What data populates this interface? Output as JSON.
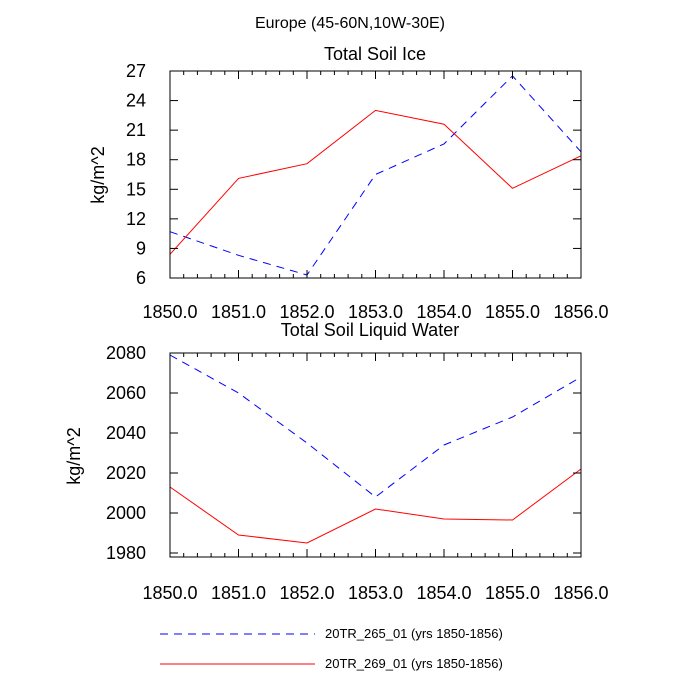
{
  "figure": {
    "suptitle": "Europe (45-60N,10W-30E)"
  },
  "chart_data": [
    {
      "type": "line",
      "title": "Total Soil Ice",
      "xlabel": "",
      "ylabel": "kg/m^2",
      "x": [
        1850,
        1851,
        1852,
        1853,
        1854,
        1855,
        1856
      ],
      "xticks": [
        "1850.0",
        "1851.0",
        "1852.0",
        "1853.0",
        "1854.0",
        "1855.0",
        "1856.0"
      ],
      "xlim": [
        1850,
        1856
      ],
      "ylim": [
        6,
        27
      ],
      "yticks": [
        6,
        9,
        12,
        15,
        18,
        21,
        24,
        27
      ],
      "series": [
        {
          "name": "20TR_265_01 (yrs 1850-1856)",
          "color": "#0000ff",
          "style": "dashed",
          "values": [
            10.7,
            8.3,
            6.3,
            16.5,
            19.6,
            26.5,
            18.8
          ]
        },
        {
          "name": "20TR_269_01 (yrs 1850-1856)",
          "color": "#ff0000",
          "style": "solid",
          "values": [
            8.4,
            16.1,
            17.6,
            23.0,
            21.6,
            15.1,
            18.4
          ]
        }
      ]
    },
    {
      "type": "line",
      "title": "Total Soil Liquid Water",
      "xlabel": "",
      "ylabel": "kg/m^2",
      "x": [
        1850,
        1851,
        1852,
        1853,
        1854,
        1855,
        1856
      ],
      "xticks": [
        "1850.0",
        "1851.0",
        "1852.0",
        "1853.0",
        "1854.0",
        "1855.0",
        "1856.0"
      ],
      "xlim": [
        1850,
        1856
      ],
      "ylim": [
        1978,
        2080
      ],
      "yticks": [
        1980,
        2000,
        2020,
        2040,
        2060,
        2080
      ],
      "series": [
        {
          "name": "20TR_265_01 (yrs 1850-1856)",
          "color": "#0000ff",
          "style": "dashed",
          "values": [
            2079,
            2060,
            2035,
            2008,
            2034,
            2048,
            2068
          ]
        },
        {
          "name": "20TR_269_01 (yrs 1850-1856)",
          "color": "#ff0000",
          "style": "solid",
          "values": [
            2013,
            1989,
            1985,
            2002,
            1997,
            1996.5,
            2022
          ]
        }
      ]
    }
  ],
  "legend": {
    "placement": "bottom",
    "entries": [
      {
        "label": "20TR_265_01 (yrs 1850-1856)",
        "color": "#0000ff",
        "style": "dashed"
      },
      {
        "label": "20TR_269_01 (yrs 1850-1856)",
        "color": "#ff0000",
        "style": "solid"
      }
    ]
  }
}
